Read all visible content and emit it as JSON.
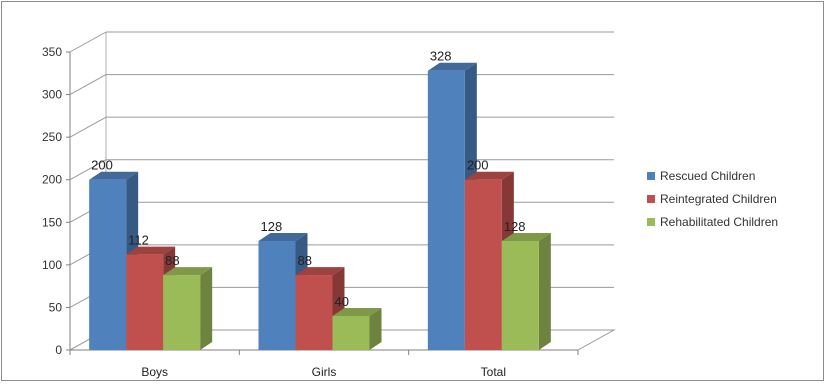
{
  "chart_data": {
    "type": "bar",
    "categories": [
      "Boys",
      "Girls",
      "Total"
    ],
    "series": [
      {
        "name": "Rescued Children",
        "values": [
          200,
          128,
          328
        ],
        "color": "#4f81bd"
      },
      {
        "name": "Reintegrated Children",
        "values": [
          112,
          88,
          200
        ],
        "color": "#c0504d"
      },
      {
        "name": "Rehabilitated Children",
        "values": [
          88,
          40,
          128
        ],
        "color": "#9bbb59"
      }
    ],
    "data_labels": [
      [
        "200",
        "112",
        "88"
      ],
      [
        "128",
        "88",
        "40"
      ],
      [
        "328",
        "200",
        "128"
      ]
    ],
    "yticks": [
      "0",
      "50",
      "100",
      "150",
      "200",
      "250",
      "300",
      "350"
    ],
    "ylim": [
      0,
      350
    ],
    "grid": true,
    "three_d": true,
    "legend_position": "right",
    "title": "",
    "xlabel": "",
    "ylabel": ""
  }
}
